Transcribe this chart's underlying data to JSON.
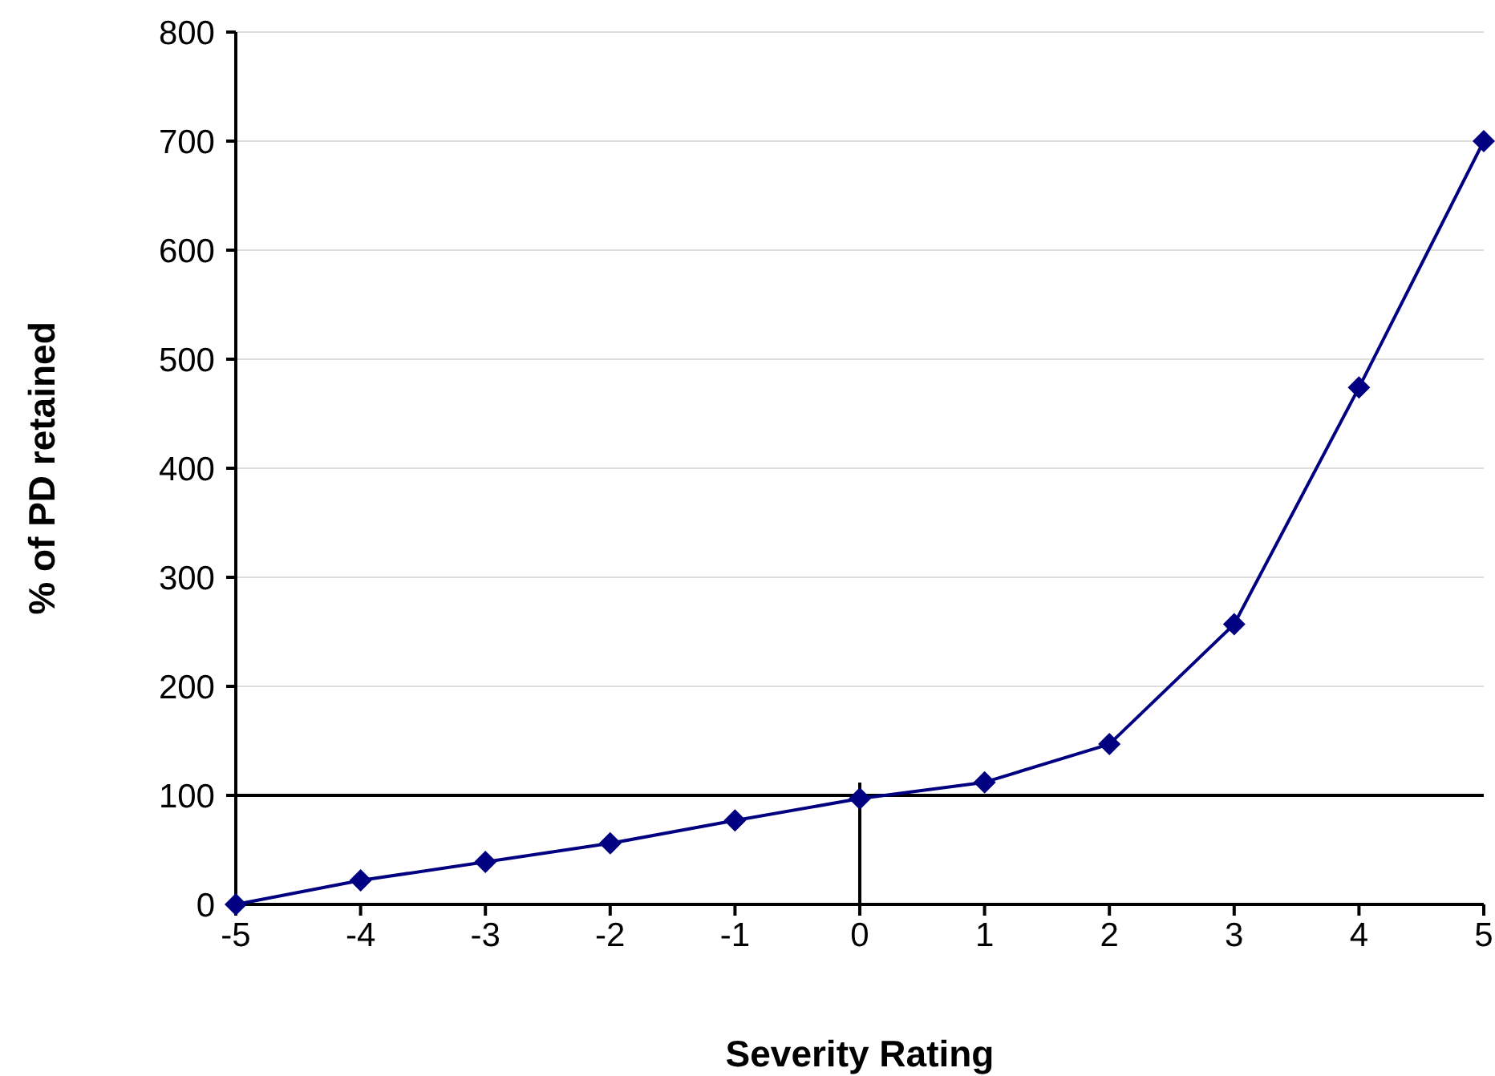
{
  "chart_data": {
    "type": "line",
    "xlabel": "Severity Rating",
    "ylabel": "% of PD retained",
    "x": [
      -5,
      -4,
      -3,
      -2,
      -1,
      0,
      1,
      2,
      3,
      4,
      5
    ],
    "series": [
      {
        "color": "#000080",
        "values": [
          0,
          22,
          39,
          56,
          77,
          97,
          112,
          147,
          257,
          474,
          700
        ]
      }
    ],
    "xlim": [
      -5,
      5
    ],
    "xticks": [
      -5,
      -4,
      -3,
      -2,
      -1,
      0,
      1,
      2,
      3,
      4,
      5
    ],
    "ylim": [
      0,
      800
    ],
    "yticks": [
      0,
      100,
      200,
      300,
      400,
      500,
      600,
      700,
      800
    ],
    "ref_lines": [
      {
        "axis": "y",
        "value": 100,
        "color": "#000000"
      },
      {
        "axis": "x",
        "value": 0,
        "color": "#000000"
      }
    ],
    "grid": "y",
    "marker": "diamond",
    "line_style": "solid"
  }
}
